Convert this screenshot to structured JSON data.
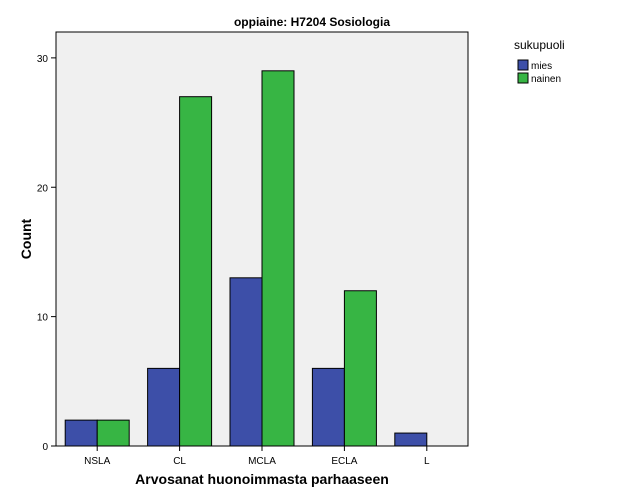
{
  "chart_data": {
    "type": "bar",
    "title": "oppiaine: H7204 Sosiologia",
    "xlabel": "Arvosanat huonoimmasta parhaaseen",
    "ylabel": "Count",
    "categories": [
      "NSLA",
      "CL",
      "MCLA",
      "ECLA",
      "L"
    ],
    "series": [
      {
        "name": "mies",
        "values": [
          2,
          6,
          13,
          6,
          1
        ],
        "color": "#3d4fa8"
      },
      {
        "name": "nainen",
        "values": [
          2,
          27,
          29,
          12,
          0
        ],
        "color": "#37b544"
      }
    ],
    "ylim": [
      0,
      32
    ],
    "yticks": [
      0,
      10,
      20,
      30
    ],
    "grid": false,
    "legend": {
      "title": "sukupuoli",
      "placement": "top-right"
    },
    "background": "#f0f0f0"
  }
}
